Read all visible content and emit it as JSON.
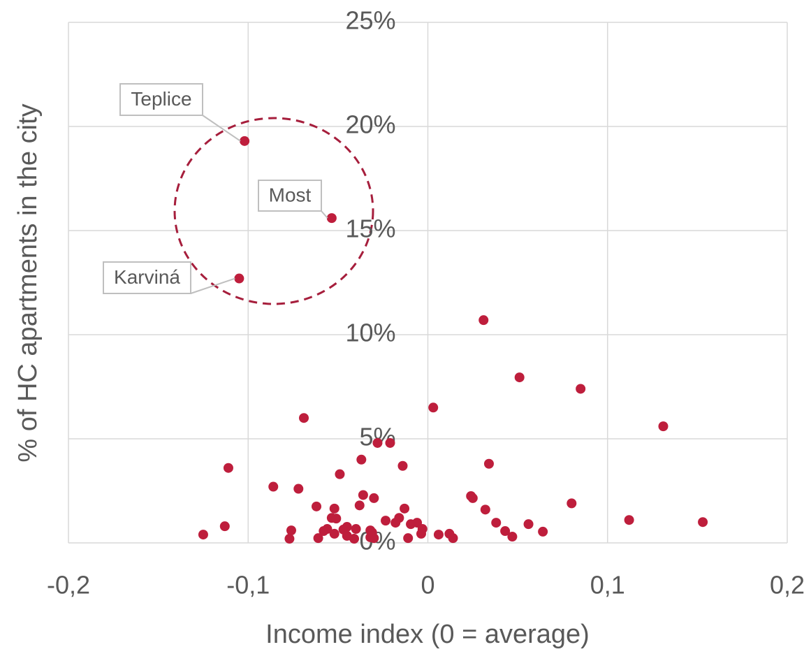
{
  "chart_data": {
    "type": "scatter",
    "x_label": "Income index (0 = average)",
    "y_label": "% of HC apartments in the city",
    "xlim": [
      -0.2,
      0.2
    ],
    "xticks": [
      {
        "value": -0.2,
        "label": "-0,2"
      },
      {
        "value": -0.1,
        "label": "-0,1"
      },
      0,
      {
        "value": 0.1,
        "label": "0,1"
      },
      {
        "value": 0.2,
        "label": "0,2"
      }
    ],
    "ylim": [
      0,
      25
    ],
    "yticks": [
      {
        "value": 0,
        "label": "0%"
      },
      {
        "value": 5,
        "label": "5%"
      },
      {
        "value": 10,
        "label": "10%"
      },
      {
        "value": 15,
        "label": "15%"
      },
      {
        "value": 20,
        "label": "20%"
      },
      {
        "value": 25,
        "label": "25%"
      }
    ],
    "grid": true,
    "series": [
      {
        "color": "#be1e3c",
        "x": [
          -0.102,
          -0.0535,
          -0.105,
          0.031,
          0.051,
          0.085,
          0.003,
          -0.069,
          0.131,
          -0.028,
          -0.021,
          -0.037,
          0.034,
          -0.014,
          -0.111,
          -0.049,
          -0.086,
          -0.072,
          -0.036,
          0.024,
          0.025,
          -0.03,
          0.08,
          -0.038,
          -0.062,
          -0.052,
          -0.013,
          0.032,
          -0.0535,
          -0.051,
          0.112,
          -0.0235,
          0.153,
          -0.016,
          -0.018,
          -0.006,
          0.038,
          0.056,
          -0.113,
          -0.0095,
          -0.045,
          -0.056,
          -0.04,
          -0.003,
          -0.047,
          -0.076,
          -0.058,
          -0.032,
          0.043,
          0.064,
          -0.0037,
          0.012,
          0.006,
          -0.125,
          -0.052,
          -0.045,
          0.047,
          -0.032,
          -0.03,
          -0.041,
          -0.061,
          -0.011,
          0.014,
          -0.077,
          -0.031
        ],
        "values": [
          19.3,
          15.6,
          12.7,
          10.7,
          7.95,
          7.4,
          6.5,
          6.0,
          5.6,
          4.8,
          4.8,
          4.0,
          3.8,
          3.7,
          3.6,
          3.3,
          2.7,
          2.6,
          2.3,
          2.25,
          2.15,
          2.15,
          1.9,
          1.8,
          1.75,
          1.65,
          1.65,
          1.6,
          1.2,
          1.17,
          1.1,
          1.07,
          1.0,
          1.2,
          0.97,
          0.97,
          0.97,
          0.9,
          0.8,
          0.9,
          0.77,
          0.67,
          0.67,
          0.67,
          0.64,
          0.6,
          0.57,
          0.6,
          0.57,
          0.54,
          0.44,
          0.44,
          0.4,
          0.4,
          0.44,
          0.34,
          0.3,
          0.27,
          0.23,
          0.2,
          0.23,
          0.23,
          0.23,
          0.2,
          0.5
        ],
        "point_labels": [
          "Teplice",
          "Most",
          "Karviná",
          null,
          null,
          null,
          null,
          null,
          null,
          null,
          null,
          null,
          null,
          null,
          null,
          null,
          null,
          null,
          null,
          null,
          null,
          null,
          null,
          null,
          null,
          null,
          null,
          null,
          null,
          null,
          null,
          null,
          null,
          null,
          null,
          null,
          null,
          null,
          null,
          null,
          null,
          null,
          null,
          null,
          null,
          null,
          null,
          null,
          null,
          null,
          null,
          null,
          null,
          null,
          null,
          null,
          null,
          null,
          null,
          null,
          null,
          null,
          null,
          null,
          null
        ]
      }
    ]
  }
}
